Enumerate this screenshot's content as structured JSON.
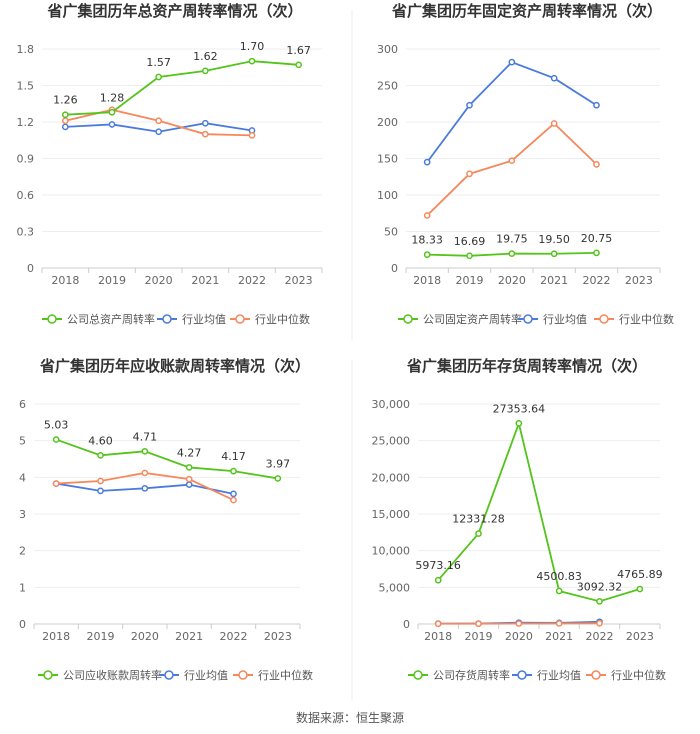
{
  "source_text": "数据来源：恒生聚源",
  "colors": {
    "company": "#52c41a",
    "industry_avg": "#4a7bdc",
    "industry_median": "#f5885c"
  },
  "chart_data": [
    {
      "type": "line",
      "title": "省广集团历年总资产周转率情况（次）",
      "categories": [
        "2018",
        "2019",
        "2020",
        "2021",
        "2022",
        "2023"
      ],
      "yticks": [
        "0",
        "0.3",
        "0.6",
        "0.9",
        "1.2",
        "1.5",
        "1.8"
      ],
      "ylim": [
        0,
        1.8
      ],
      "series": [
        {
          "name": "公司总资产周转率",
          "values": [
            1.26,
            1.28,
            1.57,
            1.62,
            1.7,
            1.67
          ],
          "labels": [
            "1.26",
            "1.28",
            "1.57",
            "1.62",
            "1.70",
            "1.67"
          ]
        },
        {
          "name": "行业均值",
          "values": [
            1.16,
            1.18,
            1.12,
            1.19,
            1.13,
            null
          ]
        },
        {
          "name": "行业中位数",
          "values": [
            1.21,
            1.3,
            1.21,
            1.1,
            1.09,
            null
          ]
        }
      ]
    },
    {
      "type": "line",
      "title": "省广集团历年固定资产周转率情况（次）",
      "categories": [
        "2018",
        "2019",
        "2020",
        "2021",
        "2022",
        "2023"
      ],
      "yticks": [
        "0",
        "50",
        "100",
        "150",
        "200",
        "250",
        "300"
      ],
      "ylim": [
        0,
        300
      ],
      "series": [
        {
          "name": "公司固定资产周转率",
          "values": [
            18.33,
            16.69,
            19.75,
            19.5,
            20.75,
            null
          ],
          "labels": [
            "18.33",
            "16.69",
            "19.75",
            "19.50",
            "20.75",
            ""
          ]
        },
        {
          "name": "行业均值",
          "values": [
            145,
            223,
            282,
            260,
            223,
            null
          ]
        },
        {
          "name": "行业中位数",
          "values": [
            72,
            129,
            147,
            198,
            142,
            null
          ]
        }
      ]
    },
    {
      "type": "line",
      "title": "省广集团历年应收账款周转率情况（次）",
      "categories": [
        "2018",
        "2019",
        "2020",
        "2021",
        "2022",
        "2023"
      ],
      "yticks": [
        "0",
        "1",
        "2",
        "3",
        "4",
        "5",
        "6"
      ],
      "ylim": [
        0,
        6
      ],
      "series": [
        {
          "name": "公司应收账款周转率",
          "values": [
            5.03,
            4.6,
            4.71,
            4.27,
            4.17,
            3.97
          ],
          "labels": [
            "5.03",
            "4.60",
            "4.71",
            "4.27",
            "4.17",
            "3.97"
          ]
        },
        {
          "name": "行业均值",
          "values": [
            3.83,
            3.63,
            3.7,
            3.8,
            3.55,
            null
          ]
        },
        {
          "name": "行业中位数",
          "values": [
            3.83,
            3.9,
            4.12,
            3.95,
            3.38,
            null
          ]
        }
      ]
    },
    {
      "type": "line",
      "title": "省广集团历年存货周转率情况（次）",
      "categories": [
        "2018",
        "2019",
        "2020",
        "2021",
        "2022",
        "2023"
      ],
      "yticks": [
        "0",
        "5,000",
        "10,000",
        "15,000",
        "20,000",
        "25,000",
        "30,000"
      ],
      "ylim": [
        0,
        30000
      ],
      "series": [
        {
          "name": "公司存货周转率",
          "values": [
            5973.16,
            12331.28,
            27353.64,
            4500.83,
            3092.32,
            4765.89
          ],
          "labels": [
            "5973.16",
            "12331.28",
            "27353.64",
            "4500.83",
            "3092.32",
            "4765.89"
          ]
        },
        {
          "name": "行业均值",
          "values": [
            50,
            60,
            180,
            150,
            300,
            null
          ]
        },
        {
          "name": "行业中位数",
          "values": [
            30,
            40,
            60,
            80,
            100,
            null
          ]
        }
      ]
    }
  ]
}
